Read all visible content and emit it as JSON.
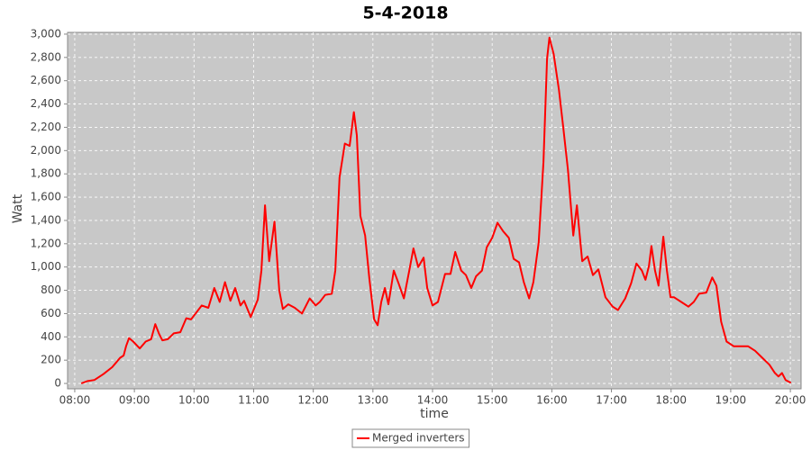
{
  "chart_data": {
    "type": "line",
    "title": "5-4-2018",
    "x_label": "time",
    "y_label": "Watt",
    "xlim": [
      7.88,
      20.18
    ],
    "ylim": [
      -46,
      3015
    ],
    "xticks": [
      {
        "value": 8,
        "label": "08:00"
      },
      {
        "value": 9,
        "label": "09:00"
      },
      {
        "value": 10,
        "label": "10:00"
      },
      {
        "value": 11,
        "label": "11:00"
      },
      {
        "value": 12,
        "label": "12:00"
      },
      {
        "value": 13,
        "label": "13:00"
      },
      {
        "value": 14,
        "label": "14:00"
      },
      {
        "value": 15,
        "label": "15:00"
      },
      {
        "value": 16,
        "label": "16:00"
      },
      {
        "value": 17,
        "label": "17:00"
      },
      {
        "value": 18,
        "label": "18:00"
      },
      {
        "value": 19,
        "label": "19:00"
      },
      {
        "value": 20,
        "label": "20:00"
      }
    ],
    "yticks": [
      0,
      200,
      400,
      600,
      800,
      {
        "value": 1000,
        "label": "1,000"
      },
      {
        "value": 1200,
        "label": "1,200"
      },
      {
        "value": 1400,
        "label": "1,400"
      },
      {
        "value": 1600,
        "label": "1,600"
      },
      {
        "value": 1800,
        "label": "1,800"
      },
      {
        "value": 2000,
        "label": "2,000"
      },
      {
        "value": 2200,
        "label": "2,200"
      },
      {
        "value": 2400,
        "label": "2,400"
      },
      {
        "value": 2600,
        "label": "2,600"
      },
      {
        "value": 2800,
        "label": "2,800"
      },
      {
        "value": 3000,
        "label": "3,000"
      }
    ],
    "grid": true,
    "legend": "bottom",
    "x": [
      8.11,
      8.21,
      8.33,
      8.48,
      8.63,
      8.76,
      8.82,
      8.86,
      8.91,
      8.98,
      9.09,
      9.19,
      9.28,
      9.35,
      9.41,
      9.47,
      9.56,
      9.66,
      9.77,
      9.87,
      9.95,
      10.01,
      10.13,
      10.24,
      10.34,
      10.43,
      10.52,
      10.61,
      10.69,
      10.78,
      10.84,
      10.95,
      11.07,
      11.13,
      11.19,
      11.26,
      11.35,
      11.43,
      11.49,
      11.58,
      11.69,
      11.81,
      11.94,
      12.04,
      12.11,
      12.2,
      12.31,
      12.37,
      12.44,
      12.53,
      12.61,
      12.68,
      12.73,
      12.79,
      12.87,
      12.94,
      13.02,
      13.08,
      13.14,
      13.2,
      13.26,
      13.35,
      13.43,
      13.52,
      13.61,
      13.68,
      13.76,
      13.85,
      13.91,
      14.0,
      14.09,
      14.21,
      14.3,
      14.38,
      14.48,
      14.56,
      14.65,
      14.73,
      14.83,
      14.91,
      15.0,
      15.09,
      15.18,
      15.28,
      15.36,
      15.45,
      15.53,
      15.62,
      15.69,
      15.78,
      15.86,
      15.92,
      15.96,
      16.03,
      16.12,
      16.19,
      16.27,
      16.36,
      16.42,
      16.51,
      16.6,
      16.69,
      16.78,
      16.9,
      17.02,
      17.11,
      17.23,
      17.33,
      17.42,
      17.51,
      17.57,
      17.63,
      17.67,
      17.73,
      17.79,
      17.87,
      17.93,
      17.99,
      18.05,
      18.17,
      18.29,
      18.38,
      18.47,
      18.59,
      18.69,
      18.76,
      18.84,
      18.93,
      19.05,
      19.17,
      19.29,
      19.41,
      19.53,
      19.65,
      19.74,
      19.8,
      19.86,
      19.92,
      20.01
    ],
    "series": [
      {
        "name": "Merged inverters",
        "color": "#ff0000",
        "values": [
          0,
          20,
          30,
          80,
          140,
          220,
          240,
          320,
          390,
          360,
          300,
          360,
          380,
          510,
          430,
          370,
          380,
          430,
          440,
          560,
          550,
          590,
          670,
          650,
          820,
          700,
          870,
          710,
          820,
          670,
          710,
          570,
          720,
          970,
          1530,
          1050,
          1390,
          800,
          640,
          680,
          650,
          600,
          730,
          670,
          700,
          760,
          770,
          970,
          1770,
          2060,
          2040,
          2330,
          2130,
          1440,
          1270,
          900,
          550,
          500,
          700,
          820,
          680,
          970,
          860,
          730,
          970,
          1160,
          1000,
          1080,
          820,
          670,
          700,
          940,
          940,
          1130,
          970,
          930,
          820,
          920,
          970,
          1170,
          1250,
          1380,
          1310,
          1250,
          1070,
          1040,
          870,
          730,
          870,
          1210,
          1900,
          2790,
          2970,
          2830,
          2520,
          2210,
          1840,
          1270,
          1530,
          1050,
          1090,
          930,
          980,
          740,
          660,
          630,
          730,
          860,
          1030,
          970,
          890,
          1010,
          1180,
          970,
          840,
          1260,
          970,
          740,
          740,
          700,
          660,
          700,
          770,
          780,
          910,
          840,
          530,
          360,
          320,
          320,
          320,
          280,
          220,
          160,
          90,
          60,
          90,
          30,
          5
        ]
      }
    ]
  }
}
